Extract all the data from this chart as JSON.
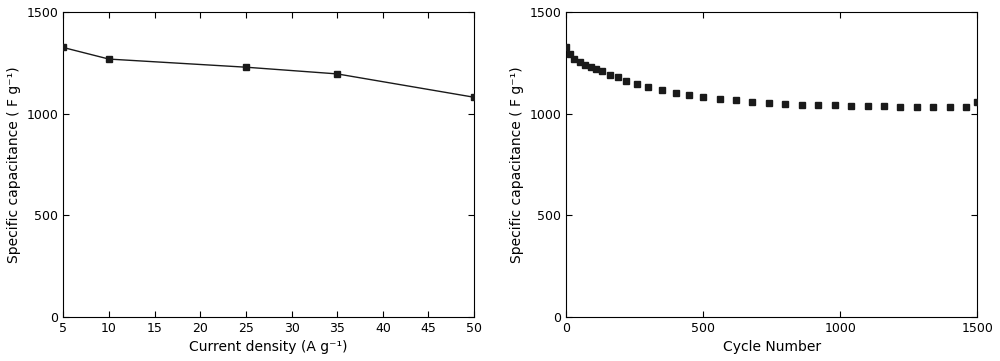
{
  "left": {
    "x": [
      5,
      10,
      25,
      35,
      50
    ],
    "y": [
      1325,
      1268,
      1228,
      1195,
      1080
    ],
    "xlabel": "Current density (A g⁻¹)",
    "ylabel": "Specific capacitance ( F g⁻¹)",
    "xlim": [
      5,
      50
    ],
    "ylim": [
      0,
      1500
    ],
    "xticks": [
      5,
      10,
      15,
      20,
      25,
      30,
      35,
      40,
      45,
      50
    ],
    "yticks": [
      0,
      500,
      1000,
      1500
    ]
  },
  "right": {
    "cycle_numbers": [
      1,
      15,
      30,
      50,
      70,
      90,
      110,
      130,
      160,
      190,
      220,
      260,
      300,
      350,
      400,
      450,
      500,
      560,
      620,
      680,
      740,
      800,
      860,
      920,
      980,
      1040,
      1100,
      1160,
      1220,
      1280,
      1340,
      1400,
      1460,
      1500
    ],
    "capacitances": [
      1325,
      1295,
      1270,
      1252,
      1238,
      1228,
      1218,
      1208,
      1192,
      1178,
      1162,
      1145,
      1130,
      1115,
      1102,
      1092,
      1082,
      1072,
      1065,
      1058,
      1052,
      1048,
      1044,
      1042,
      1040,
      1038,
      1036,
      1035,
      1033,
      1032,
      1032,
      1030,
      1030,
      1055
    ],
    "xlabel": "Cycle Number",
    "ylabel": "Specific capacitance ( F g⁻¹)",
    "xlim": [
      0,
      1500
    ],
    "ylim": [
      0,
      1500
    ],
    "xticks": [
      0,
      500,
      1000,
      1500
    ],
    "yticks": [
      0,
      500,
      1000,
      1500
    ]
  },
  "marker": "s",
  "marker_size": 5,
  "line_color": "#1a1a1a",
  "bg_color": "#ffffff",
  "font_size_label": 10,
  "font_size_tick": 9,
  "figure_width": 10.0,
  "figure_height": 3.61
}
